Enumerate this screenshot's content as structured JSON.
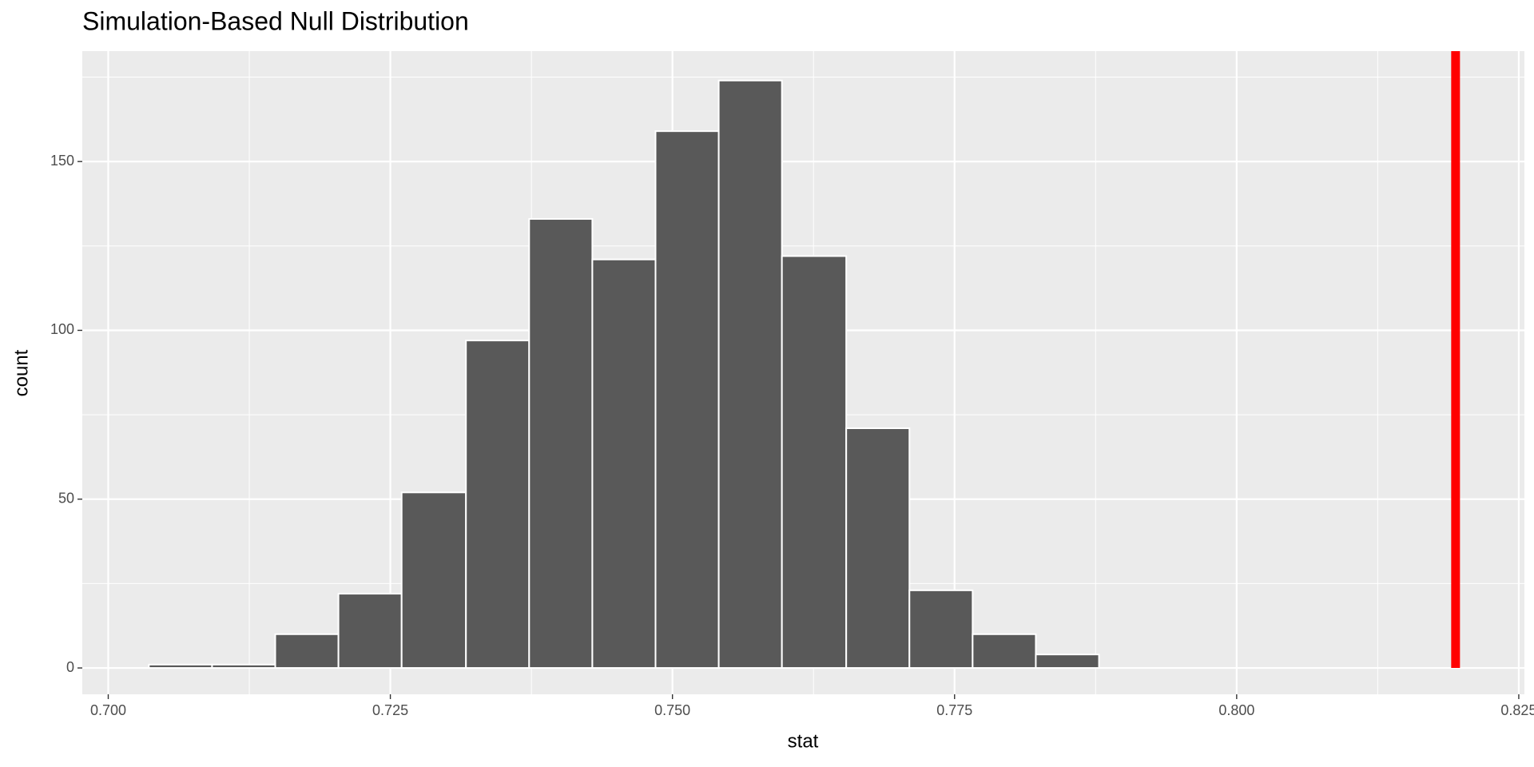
{
  "chart_data": {
    "type": "histogram",
    "title": "Simulation-Based Null Distribution",
    "x_label": "stat",
    "y_label": "count",
    "bins": [
      0.7036,
      0.7092,
      0.7148,
      0.7204,
      0.726,
      0.7317,
      0.7373,
      0.7429,
      0.7485,
      0.7541,
      0.7597,
      0.7654,
      0.771,
      0.7766,
      0.7822,
      0.7878
    ],
    "values": [
      1,
      1,
      10,
      22,
      52,
      97,
      133,
      121,
      159,
      174,
      122,
      71,
      23,
      10,
      4
    ],
    "color": "#595959",
    "vline": {
      "value": 0.8194,
      "color": "#ff0000"
    },
    "xlim": [
      0.6977,
      0.8255
    ],
    "ylim": [
      -7.8,
      182.7
    ],
    "xticks": [
      {
        "value": 0.7,
        "label": "0.700"
      },
      {
        "value": 0.725,
        "label": "0.725"
      },
      {
        "value": 0.75,
        "label": "0.750"
      },
      {
        "value": 0.775,
        "label": "0.775"
      },
      {
        "value": 0.8,
        "label": "0.800"
      },
      {
        "value": 0.825,
        "label": "0.825"
      }
    ],
    "yticks": [
      0,
      50,
      100,
      150
    ],
    "grid": true
  }
}
